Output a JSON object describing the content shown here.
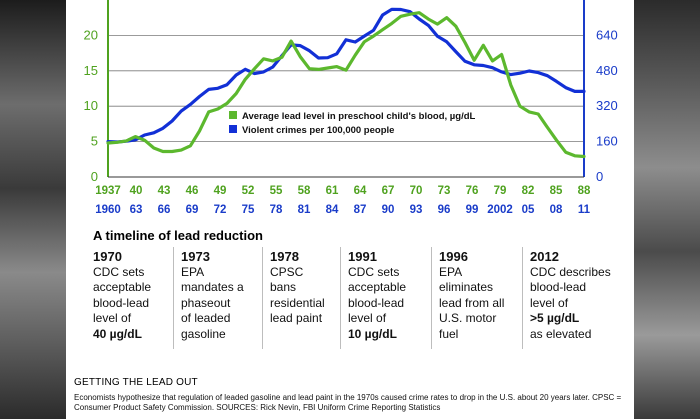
{
  "chart_data": {
    "type": "line",
    "left_axis": {
      "ticks": [
        "0",
        "5",
        "10",
        "15",
        "20"
      ],
      "range": [
        0,
        25
      ]
    },
    "right_axis": {
      "ticks": [
        "0",
        "160",
        "320",
        "480",
        "640"
      ],
      "range": [
        0,
        800
      ]
    },
    "x_labels_lead": [
      "1937",
      "40",
      "43",
      "46",
      "49",
      "52",
      "55",
      "58",
      "61",
      "64",
      "67",
      "70",
      "73",
      "76",
      "79",
      "82",
      "85",
      "88"
    ],
    "x_labels_crime": [
      "1960",
      "63",
      "66",
      "69",
      "72",
      "75",
      "78",
      "81",
      "84",
      "87",
      "90",
      "93",
      "96",
      "99",
      "2002",
      "05",
      "08",
      "11"
    ],
    "series": [
      {
        "name": "Average lead level in preschool child's blood, µg/dL",
        "axis": "left",
        "color": "#5cb82e",
        "x": [
          1937,
          1938,
          1939,
          1940,
          1941,
          1942,
          1943,
          1944,
          1945,
          1946,
          1947,
          1948,
          1949,
          1950,
          1951,
          1952,
          1953,
          1954,
          1955,
          1956,
          1957,
          1958,
          1959,
          1960,
          1961,
          1962,
          1963,
          1964,
          1965,
          1966,
          1967,
          1968,
          1969,
          1970,
          1971,
          1972,
          1973,
          1974,
          1975,
          1976,
          1977,
          1978,
          1979,
          1980,
          1981,
          1982,
          1983,
          1984,
          1985,
          1986,
          1987,
          1988,
          1989
        ],
        "values": [
          4.8,
          4.9,
          5.1,
          5.7,
          5.2,
          4.1,
          3.6,
          3.6,
          3.8,
          4.4,
          6.5,
          9.2,
          9.6,
          10.4,
          11.8,
          13.8,
          15.3,
          16.7,
          16.4,
          16.9,
          19.2,
          17.0,
          15.3,
          15.2,
          15.4,
          15.6,
          15.1,
          17.2,
          19.1,
          19.9,
          20.8,
          21.7,
          22.7,
          23.0,
          23.2,
          22.3,
          21.6,
          22.5,
          21.3,
          19.0,
          16.5,
          18.6,
          16.4,
          17.3,
          13.0,
          10.0,
          9.2,
          8.9,
          7.0,
          5.2,
          3.5,
          3.0,
          2.9
        ]
      },
      {
        "name": "Violent crimes per 100,000 people",
        "axis": "right",
        "color": "#1230d6",
        "x": [
          1960,
          1961,
          1962,
          1963,
          1964,
          1965,
          1966,
          1967,
          1968,
          1969,
          1970,
          1971,
          1972,
          1973,
          1974,
          1975,
          1976,
          1977,
          1978,
          1979,
          1980,
          1981,
          1982,
          1983,
          1984,
          1985,
          1986,
          1987,
          1988,
          1989,
          1990,
          1991,
          1992,
          1993,
          1994,
          1995,
          1996,
          1997,
          1998,
          1999,
          2000,
          2001,
          2002,
          2003,
          2004,
          2005,
          2006,
          2007,
          2008,
          2009,
          2010,
          2011,
          2012
        ],
        "values": [
          160,
          158,
          162,
          168,
          190,
          200,
          220,
          253,
          298,
          328,
          364,
          396,
          401,
          417,
          461,
          487,
          468,
          475,
          497,
          548,
          597,
          594,
          571,
          538,
          539,
          557,
          620,
          610,
          637,
          663,
          732,
          758,
          757,
          747,
          714,
          685,
          636,
          611,
          567,
          523,
          507,
          504,
          494,
          475,
          463,
          469,
          479,
          472,
          458,
          432,
          404,
          387,
          387
        ]
      }
    ],
    "legend": [
      "Average lead level in preschool child's blood, µg/dL",
      "Violent crimes per 100,000 people"
    ]
  },
  "timeline": {
    "title": "A timeline of lead reduction",
    "events": [
      {
        "year": "1970",
        "lines": [
          "CDC sets",
          "acceptable",
          "blood-lead",
          "level of"
        ],
        "highlight": "40 µg/dL",
        "after": []
      },
      {
        "year": "1973",
        "lines": [
          "EPA",
          "mandates a",
          "phaseout",
          "of leaded",
          "gasoline"
        ],
        "highlight": "",
        "after": []
      },
      {
        "year": "1978",
        "lines": [
          "CPSC",
          "bans",
          "residential",
          "lead paint"
        ],
        "highlight": "",
        "after": []
      },
      {
        "year": "1991",
        "lines": [
          "CDC sets",
          "acceptable",
          "blood-lead",
          "level of"
        ],
        "highlight": "10 µg/dL",
        "after": []
      },
      {
        "year": "1996",
        "lines": [
          "EPA",
          "eliminates",
          "lead from all",
          "U.S. motor",
          "fuel"
        ],
        "highlight": "",
        "after": []
      },
      {
        "year": "2012",
        "lines": [
          "CDC describes",
          "blood-lead",
          "level of"
        ],
        "highlight": ">5 µg/dL",
        "after": [
          "as elevated"
        ]
      }
    ]
  },
  "caption": {
    "title": "GETTING THE LEAD OUT",
    "text": "Economists hypothesize that regulation of leaded gasoline and lead paint in the 1970s caused crime rates to drop in the U.S. about 20 years later. CPSC = Consumer Product Safety Commission. SOURCES: Rick Nevin, FBI Uniform Crime Reporting Statistics"
  },
  "colors": {
    "lead": "#5cb82e",
    "crime": "#1230d6",
    "axis_green": "#4fa21f",
    "axis_blue": "#1a3cc9"
  }
}
